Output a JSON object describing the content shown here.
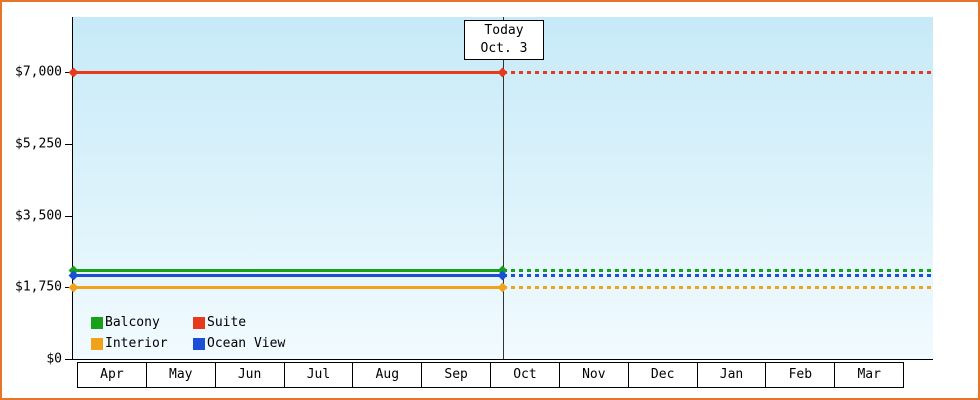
{
  "chart_data": {
    "type": "line",
    "x_categories": [
      "Apr",
      "May",
      "Jun",
      "Jul",
      "Aug",
      "Sep",
      "Oct",
      "Nov",
      "Dec",
      "Jan",
      "Feb",
      "Mar"
    ],
    "y_ticks": [
      "$7,000",
      "$5,250",
      "$3,500",
      "$1,750",
      "$0"
    ],
    "y_tick_values": [
      7000,
      5250,
      3500,
      1750,
      0
    ],
    "ylim": [
      0,
      7000
    ],
    "series": [
      {
        "name": "Balcony",
        "value": 2150,
        "color": "#18a018"
      },
      {
        "name": "Suite",
        "value": 7000,
        "color": "#e8391d"
      },
      {
        "name": "Interior",
        "value": 1750,
        "color": "#f0a21b"
      },
      {
        "name": "Ocean View",
        "value": 2025,
        "color": "#1b4fd8"
      }
    ],
    "annotation": {
      "label": "Today",
      "date": "Oct. 3",
      "x_position": "boundary between Sep and Oct"
    },
    "line_style": {
      "solid_until": "today",
      "dotted_after": "today"
    },
    "legend_position": "bottom-left inside plot",
    "grid": "off"
  },
  "frame": {
    "border_color": "#e8742a"
  }
}
